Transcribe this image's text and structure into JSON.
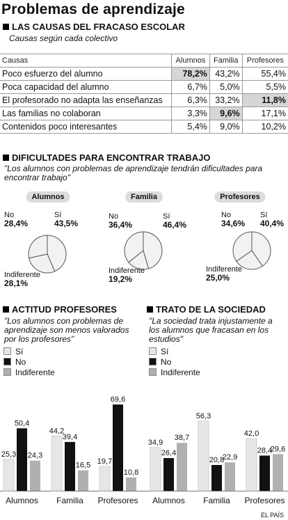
{
  "title": "Problemas de aprendizaje",
  "causes": {
    "heading": "LAS CAUSAS DEL FRACASO ESCOLAR",
    "subtitle": "Causas según cada colectivo",
    "columns": [
      "Causas",
      "Alumnos",
      "Familia",
      "Profesores"
    ],
    "rows": [
      {
        "label": "Poco esfuerzo del alumno",
        "values": [
          "78,2%",
          "43,2%",
          "55,4%"
        ],
        "highlight": 0
      },
      {
        "label": "Poca capacidad del alumno",
        "values": [
          "6,7%",
          "5,0%",
          "5,5%"
        ],
        "highlight": -1
      },
      {
        "label": "El profesorado no adapta las enseñanzas",
        "values": [
          "6,3%",
          "33,2%",
          "11,8%"
        ],
        "highlight": 2
      },
      {
        "label": "Las familias no colaboran",
        "values": [
          "3,3%",
          "9,6%",
          "17,1%"
        ],
        "highlight": 1
      },
      {
        "label": "Contenidos poco interesantes",
        "values": [
          "5,4%",
          "9,0%",
          "10,2%"
        ],
        "highlight": -1
      }
    ]
  },
  "jobs": {
    "heading": "DIFICULTADES PARA ENCONTRAR TRABAJO",
    "quote": "\"Los alumnos con problemas de aprendizaje tendrán dificultades para encontrar trabajo\"",
    "pies": [
      {
        "name": "Alumnos",
        "no_label": "No",
        "no_value": "28,4%",
        "si_label": "Sí",
        "si_value": "43,5%",
        "ind_label": "Indiferente",
        "ind_value": "28,1%"
      },
      {
        "name": "Familia",
        "no_label": "No",
        "no_value": "36,4%",
        "si_label": "Sí",
        "si_value": "46,4%",
        "ind_label": "Indiferente",
        "ind_value": "19,2%"
      },
      {
        "name": "Profesores",
        "no_label": "No",
        "no_value": "34,6%",
        "si_label": "Sí",
        "si_value": "40,4%",
        "ind_label": "Indiferente",
        "ind_value": "25,0%"
      }
    ]
  },
  "attitude": {
    "heading": "ACTITUD PROFESORES",
    "quote": "\"Los alumnos con problemas de aprendizaje son menos valorados por los profesores\""
  },
  "society": {
    "heading": "TRATO DE LA SOCIEDAD",
    "quote": "\"La sociedad trata injustamente a los alumnos que fracasan en los estudios\""
  },
  "legend": {
    "si": "Sí",
    "no": "No",
    "ind": "Indiferente"
  },
  "colors": {
    "si": "#e6e6e6",
    "no": "#111111",
    "ind": "#b0b0b0",
    "highlight": "#d6d6d6"
  },
  "chart_data": [
    {
      "type": "pie",
      "title": "Alumnos",
      "categories": [
        "Sí",
        "No",
        "Indiferente"
      ],
      "values": [
        43.5,
        28.4,
        28.1
      ]
    },
    {
      "type": "pie",
      "title": "Familia",
      "categories": [
        "Sí",
        "No",
        "Indiferente"
      ],
      "values": [
        46.4,
        36.4,
        19.2
      ]
    },
    {
      "type": "pie",
      "title": "Profesores",
      "categories": [
        "Sí",
        "No",
        "Indiferente"
      ],
      "values": [
        40.4,
        34.6,
        25.0
      ]
    },
    {
      "type": "bar",
      "title": "ACTITUD PROFESORES",
      "categories": [
        "Alumnos",
        "Familia",
        "Profesores"
      ],
      "series": [
        {
          "name": "Sí",
          "values": [
            25.3,
            44.2,
            19.7
          ],
          "labels": [
            "25,3",
            "44,2",
            "19,7"
          ]
        },
        {
          "name": "No",
          "values": [
            50.4,
            39.4,
            69.6
          ],
          "labels": [
            "50,4",
            "39,4",
            "69,6"
          ]
        },
        {
          "name": "Indiferente",
          "values": [
            24.3,
            16.5,
            10.8
          ],
          "labels": [
            "24,3",
            "16,5",
            "10,8"
          ]
        }
      ],
      "ylim": [
        0,
        70
      ]
    },
    {
      "type": "bar",
      "title": "TRATO DE LA SOCIEDAD",
      "categories": [
        "Alumnos",
        "Familia",
        "Profesores"
      ],
      "series": [
        {
          "name": "Sí",
          "values": [
            34.9,
            56.3,
            42.0
          ],
          "labels": [
            "34,9",
            "56,3",
            "42,0"
          ]
        },
        {
          "name": "No",
          "values": [
            26.4,
            20.8,
            28.4
          ],
          "labels": [
            "26,4",
            "20,8",
            "28,4"
          ]
        },
        {
          "name": "Indiferente",
          "values": [
            38.7,
            22.9,
            29.6
          ],
          "labels": [
            "38,7",
            "22,9",
            "29,6"
          ]
        }
      ],
      "ylim": [
        0,
        70
      ]
    }
  ],
  "footer": "EL PAÍS"
}
